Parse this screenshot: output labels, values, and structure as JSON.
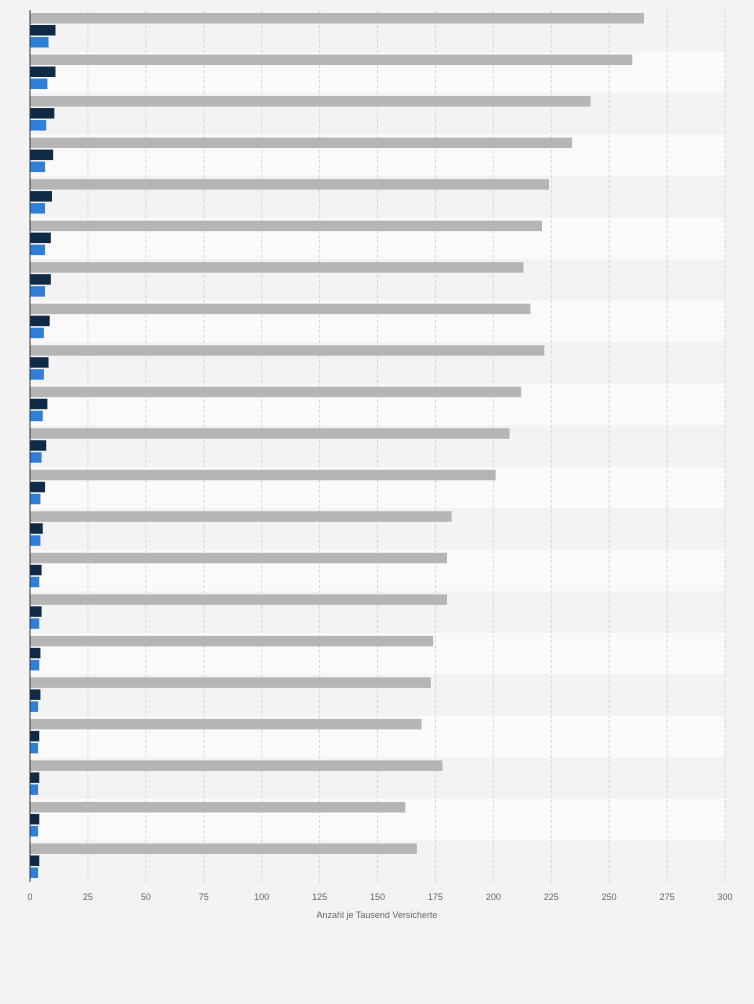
{
  "chart_data": {
    "type": "bar",
    "orientation": "horizontal",
    "categories": [
      "",
      "",
      "",
      "",
      "",
      "",
      "",
      "",
      "",
      "",
      "",
      "",
      "",
      "",
      "",
      "",
      "",
      "",
      "",
      "",
      ""
    ],
    "series": [
      {
        "color": "#b5b5b5",
        "values": [
          265,
          260,
          242,
          234,
          224,
          221,
          213,
          216,
          222,
          212,
          207,
          201,
          182,
          180,
          180,
          174,
          173,
          169,
          178,
          162,
          167
        ]
      },
      {
        "color": "#0e2a47",
        "values": [
          11,
          11,
          10.5,
          10,
          9.5,
          9,
          9,
          8.5,
          8,
          7.5,
          7,
          6.5,
          5.5,
          5,
          5,
          4.5,
          4.5,
          4,
          4,
          4,
          4
        ]
      },
      {
        "color": "#2f7ed8",
        "values": [
          8,
          7.5,
          7,
          6.5,
          6.5,
          6.5,
          6.5,
          6,
          6,
          5.5,
          5,
          4.5,
          4.5,
          4,
          4,
          4,
          3.5,
          3.5,
          3.5,
          3.5,
          3.5
        ]
      }
    ],
    "xlim": [
      0,
      300
    ],
    "xticks": [
      "0",
      "25",
      "50",
      "75",
      "100",
      "125",
      "150",
      "175",
      "200",
      "225",
      "250",
      "275",
      "300"
    ],
    "xlabel": "Anzahl je Tausend Versicherte",
    "ylabel": "",
    "grid": true,
    "legend": "none"
  }
}
